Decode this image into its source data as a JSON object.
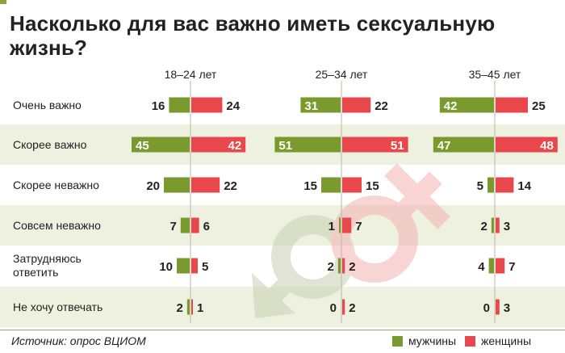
{
  "title": "Насколько для вас важно иметь сексуальную жизнь?",
  "source": "Источник: опрос ВЦИОМ",
  "legend": [
    {
      "label": "мужчины",
      "color": "#7a9a2e"
    },
    {
      "label": "женщины",
      "color": "#e8474c"
    }
  ],
  "colors": {
    "men": "#7a9a2e",
    "women": "#e8474c",
    "stripe": "#eef1e0"
  },
  "chart_data": {
    "type": "bar",
    "categories": [
      "Очень важно",
      "Скорее важно",
      "Скорее неважно",
      "Совсем неважно",
      "Затрудняюсь ответить",
      "Не хочу отвечать"
    ],
    "category_lines": [
      [
        "Очень важно"
      ],
      [
        "Скорее важно"
      ],
      [
        "Скорее неважно"
      ],
      [
        "Совсем неважно"
      ],
      [
        "Затрудняюсь",
        "ответить"
      ],
      [
        "Не хочу отвечать"
      ]
    ],
    "groups": [
      {
        "name": "18–24 лет",
        "series": [
          {
            "name": "мужчины",
            "values": [
              16,
              45,
              20,
              7,
              10,
              2
            ]
          },
          {
            "name": "женщины",
            "values": [
              24,
              42,
              22,
              6,
              5,
              1
            ]
          }
        ]
      },
      {
        "name": "25–34 лет",
        "series": [
          {
            "name": "мужчины",
            "values": [
              31,
              51,
              15,
              1,
              2,
              0
            ]
          },
          {
            "name": "женщины",
            "values": [
              22,
              51,
              15,
              7,
              2,
              2
            ]
          }
        ]
      },
      {
        "name": "35–45 лет",
        "series": [
          {
            "name": "мужчины",
            "values": [
              42,
              47,
              5,
              2,
              4,
              0
            ]
          },
          {
            "name": "женщины",
            "values": [
              25,
              48,
              14,
              3,
              7,
              3
            ]
          }
        ]
      }
    ],
    "units": "%"
  }
}
